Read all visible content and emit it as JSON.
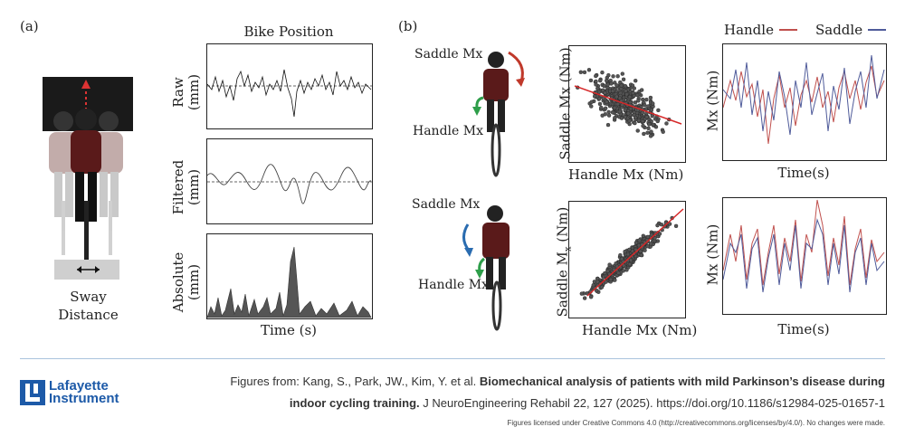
{
  "panel_a": {
    "label": "(a)",
    "title": "Bike Position",
    "plots": [
      {
        "ylabel_line1": "Raw",
        "ylabel_line2": "(mm)"
      },
      {
        "ylabel_line1": "Filtered",
        "ylabel_line2": "(mm)"
      },
      {
        "ylabel_line1": "Absolute",
        "ylabel_line2": "(mm)"
      }
    ],
    "xlabel": "Time (s)",
    "sway_label_line1": "Sway",
    "sway_label_line2": "Distance"
  },
  "panel_b": {
    "label": "(b)",
    "top_illustration": {
      "saddle_label": "Saddle Mx",
      "handle_label": "Handle Mx"
    },
    "bottom_illustration": {
      "saddle_label": "Saddle Mx",
      "handle_label": "Handle Mx"
    },
    "scatter_top": {
      "xlabel": "Handle Mx (Nm)",
      "ylabel": "Saddle Mx (Nm)"
    },
    "scatter_bottom": {
      "xlabel": "Handle Mx (Nm)",
      "ylabel_prefix": "Saddle M",
      "ylabel_sub": "x",
      "ylabel_suffix": " (Nm)"
    },
    "legend": {
      "handle": "Handle",
      "saddle": "Saddle",
      "handle_color": "#c0504d",
      "saddle_color": "#4f5b9a"
    },
    "timeseries_top": {
      "xlabel": "Time(s)",
      "ylabel": "Mx (Nm)"
    },
    "timeseries_bottom": {
      "xlabel": "Time(s)",
      "ylabel": "Mx (Nm)"
    }
  },
  "footer": {
    "logo_line1": "Lafayette",
    "logo_line2": "Instrument",
    "logo_color": "#1d5aa8",
    "citation_prefix": "Figures from: Kang, S., Park, JW., Kim, Y. et al. ",
    "citation_title_part1": "Biomechanical analysis of patients with mild Parkinson’s disease during",
    "citation_title_part2": "indoor cycling training.",
    "citation_suffix": " J NeuroEngineering Rehabil 22, 127 (2025). https://doi.org/10.1186/s12984-025-01657-1",
    "license": "Figures licensed under Creative Commons 4.0 (http://creativecommons.org/licenses/by/4.0/). No changes were made."
  }
}
